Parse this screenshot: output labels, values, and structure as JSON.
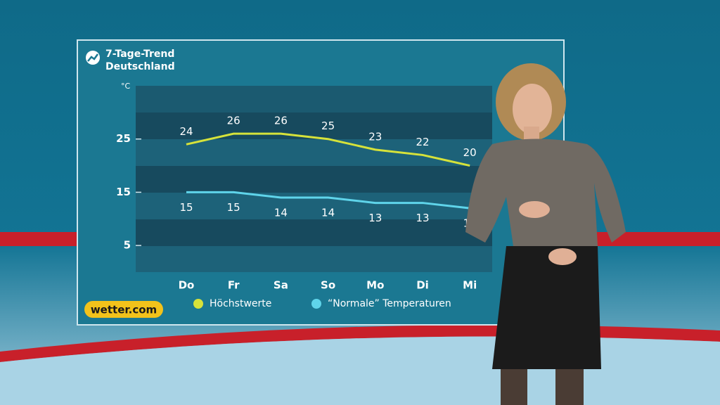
{
  "chart_data": {
    "type": "line",
    "title": "7-Tage-Trend",
    "subtitle": "Deutschland",
    "y_label": "°C",
    "categories": [
      "Do",
      "Fr",
      "Sa",
      "So",
      "Mo",
      "Di",
      "Mi"
    ],
    "series": [
      {
        "name": "Höchstwerte",
        "color": "#d6e23a",
        "values": [
          24,
          26,
          26,
          25,
          23,
          22,
          20
        ]
      },
      {
        "name": "“Normale” Temperaturen",
        "color": "#5fd4ea",
        "values": [
          15,
          15,
          14,
          14,
          13,
          13,
          12
        ]
      }
    ],
    "ylim": [
      0,
      35
    ],
    "yticks": [
      5,
      15,
      25
    ],
    "source": "wetter.com"
  }
}
